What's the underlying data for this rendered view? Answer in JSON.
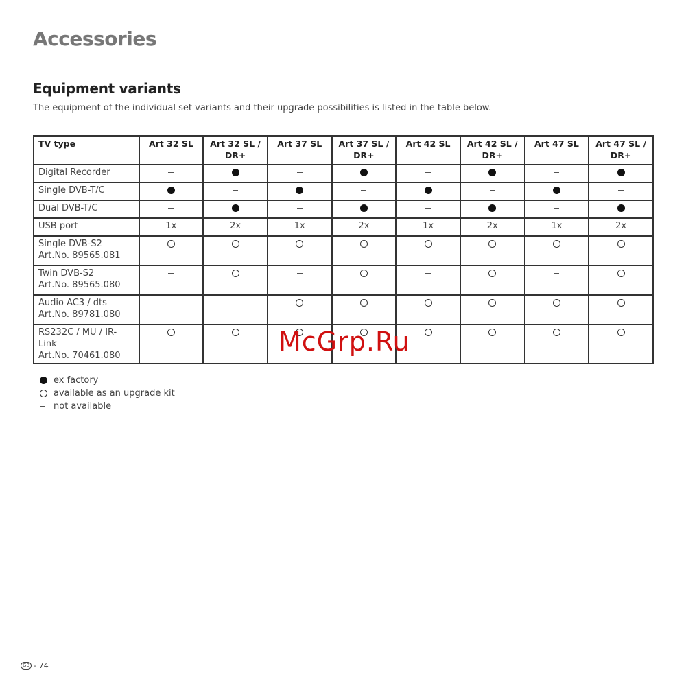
{
  "page_title": "Accessories",
  "section_title": "Equipment variants",
  "intro": "The equipment of the individual set variants and their upgrade possibilities is listed in the table below.",
  "table": {
    "headers": [
      [
        "TV type",
        ""
      ],
      [
        "Art 32 SL",
        ""
      ],
      [
        "Art 32 SL /",
        "DR+"
      ],
      [
        "Art 37 SL",
        ""
      ],
      [
        "Art 37 SL /",
        "DR+"
      ],
      [
        "Art 42 SL",
        ""
      ],
      [
        "Art 42 SL /",
        "DR+"
      ],
      [
        "Art 47 SL",
        ""
      ],
      [
        "Art 47 SL /",
        "DR+"
      ]
    ],
    "rows": [
      {
        "label": [
          "Digital Recorder"
        ],
        "cells": [
          "-",
          "F",
          "-",
          "F",
          "-",
          "F",
          "-",
          "F"
        ]
      },
      {
        "label": [
          "Single DVB-T/C"
        ],
        "cells": [
          "F",
          "-",
          "F",
          "-",
          "F",
          "-",
          "F",
          "-"
        ]
      },
      {
        "label": [
          "Dual DVB-T/C"
        ],
        "cells": [
          "-",
          "F",
          "-",
          "F",
          "-",
          "F",
          "-",
          "F"
        ]
      },
      {
        "label": [
          "USB port"
        ],
        "cells": [
          "1x",
          "2x",
          "1x",
          "2x",
          "1x",
          "2x",
          "1x",
          "2x"
        ]
      },
      {
        "label": [
          "Single DVB-S2",
          "Art.No. 89565.081"
        ],
        "cells": [
          "O",
          "O",
          "O",
          "O",
          "O",
          "O",
          "O",
          "O"
        ]
      },
      {
        "label": [
          "Twin DVB-S2",
          "Art.No. 89565.080"
        ],
        "cells": [
          "-",
          "O",
          "-",
          "O",
          "-",
          "O",
          "-",
          "O"
        ]
      },
      {
        "label": [
          "Audio AC3 / dts",
          "Art.No. 89781.080"
        ],
        "cells": [
          "-",
          "-",
          "O",
          "O",
          "O",
          "O",
          "O",
          "O"
        ]
      },
      {
        "label": [
          "RS232C / MU / IR-Link",
          "Art.No. 70461.080"
        ],
        "cells": [
          "O",
          "O",
          "O",
          "O",
          "O",
          "O",
          "O",
          "O"
        ]
      }
    ]
  },
  "legend": [
    {
      "symbol": "filled-circle",
      "text": "ex factory"
    },
    {
      "symbol": "open-circle",
      "text": "available as an upgrade kit"
    },
    {
      "symbol": "dash",
      "text": "not available"
    }
  ],
  "watermark": "McGrp.Ru",
  "footer": {
    "country_badge": "GB",
    "page": "- 74"
  }
}
